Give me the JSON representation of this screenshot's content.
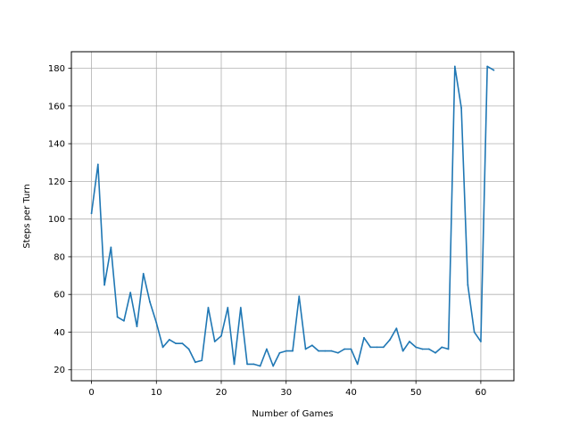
{
  "chart_data": {
    "type": "line",
    "title": "",
    "xlabel": "Number of Games",
    "ylabel": "Steps per Turn",
    "xlim": [
      -3.1,
      65.1
    ],
    "ylim": [
      14.2,
      188.8
    ],
    "xticks": [
      0,
      10,
      20,
      30,
      40,
      50,
      60
    ],
    "yticks": [
      20,
      40,
      60,
      80,
      100,
      120,
      140,
      160,
      180
    ],
    "grid": true,
    "legend": "none",
    "series": [
      {
        "color": "#1f77b4",
        "x": [
          0,
          1,
          2,
          3,
          4,
          5,
          6,
          7,
          8,
          9,
          10,
          11,
          12,
          13,
          14,
          15,
          16,
          17,
          18,
          19,
          20,
          21,
          22,
          23,
          24,
          25,
          26,
          27,
          28,
          29,
          30,
          31,
          32,
          33,
          34,
          35,
          36,
          37,
          38,
          39,
          40,
          41,
          42,
          43,
          44,
          45,
          46,
          47,
          48,
          49,
          50,
          51,
          52,
          53,
          54,
          55,
          56,
          57,
          58,
          59,
          60,
          61,
          62
        ],
        "values": [
          103,
          129,
          65,
          85,
          48,
          46,
          61,
          43,
          71,
          56,
          45,
          32,
          36,
          34,
          34,
          31,
          24,
          25,
          53,
          35,
          38,
          53,
          23,
          53,
          23,
          23,
          22,
          31,
          22,
          29,
          30,
          30,
          59,
          31,
          33,
          30,
          30,
          30,
          29,
          31,
          31,
          23,
          37,
          32,
          32,
          32,
          36,
          42,
          30,
          35,
          32,
          31,
          31,
          29,
          32,
          31,
          181,
          159,
          65,
          40,
          35,
          181,
          179
        ]
      }
    ]
  }
}
